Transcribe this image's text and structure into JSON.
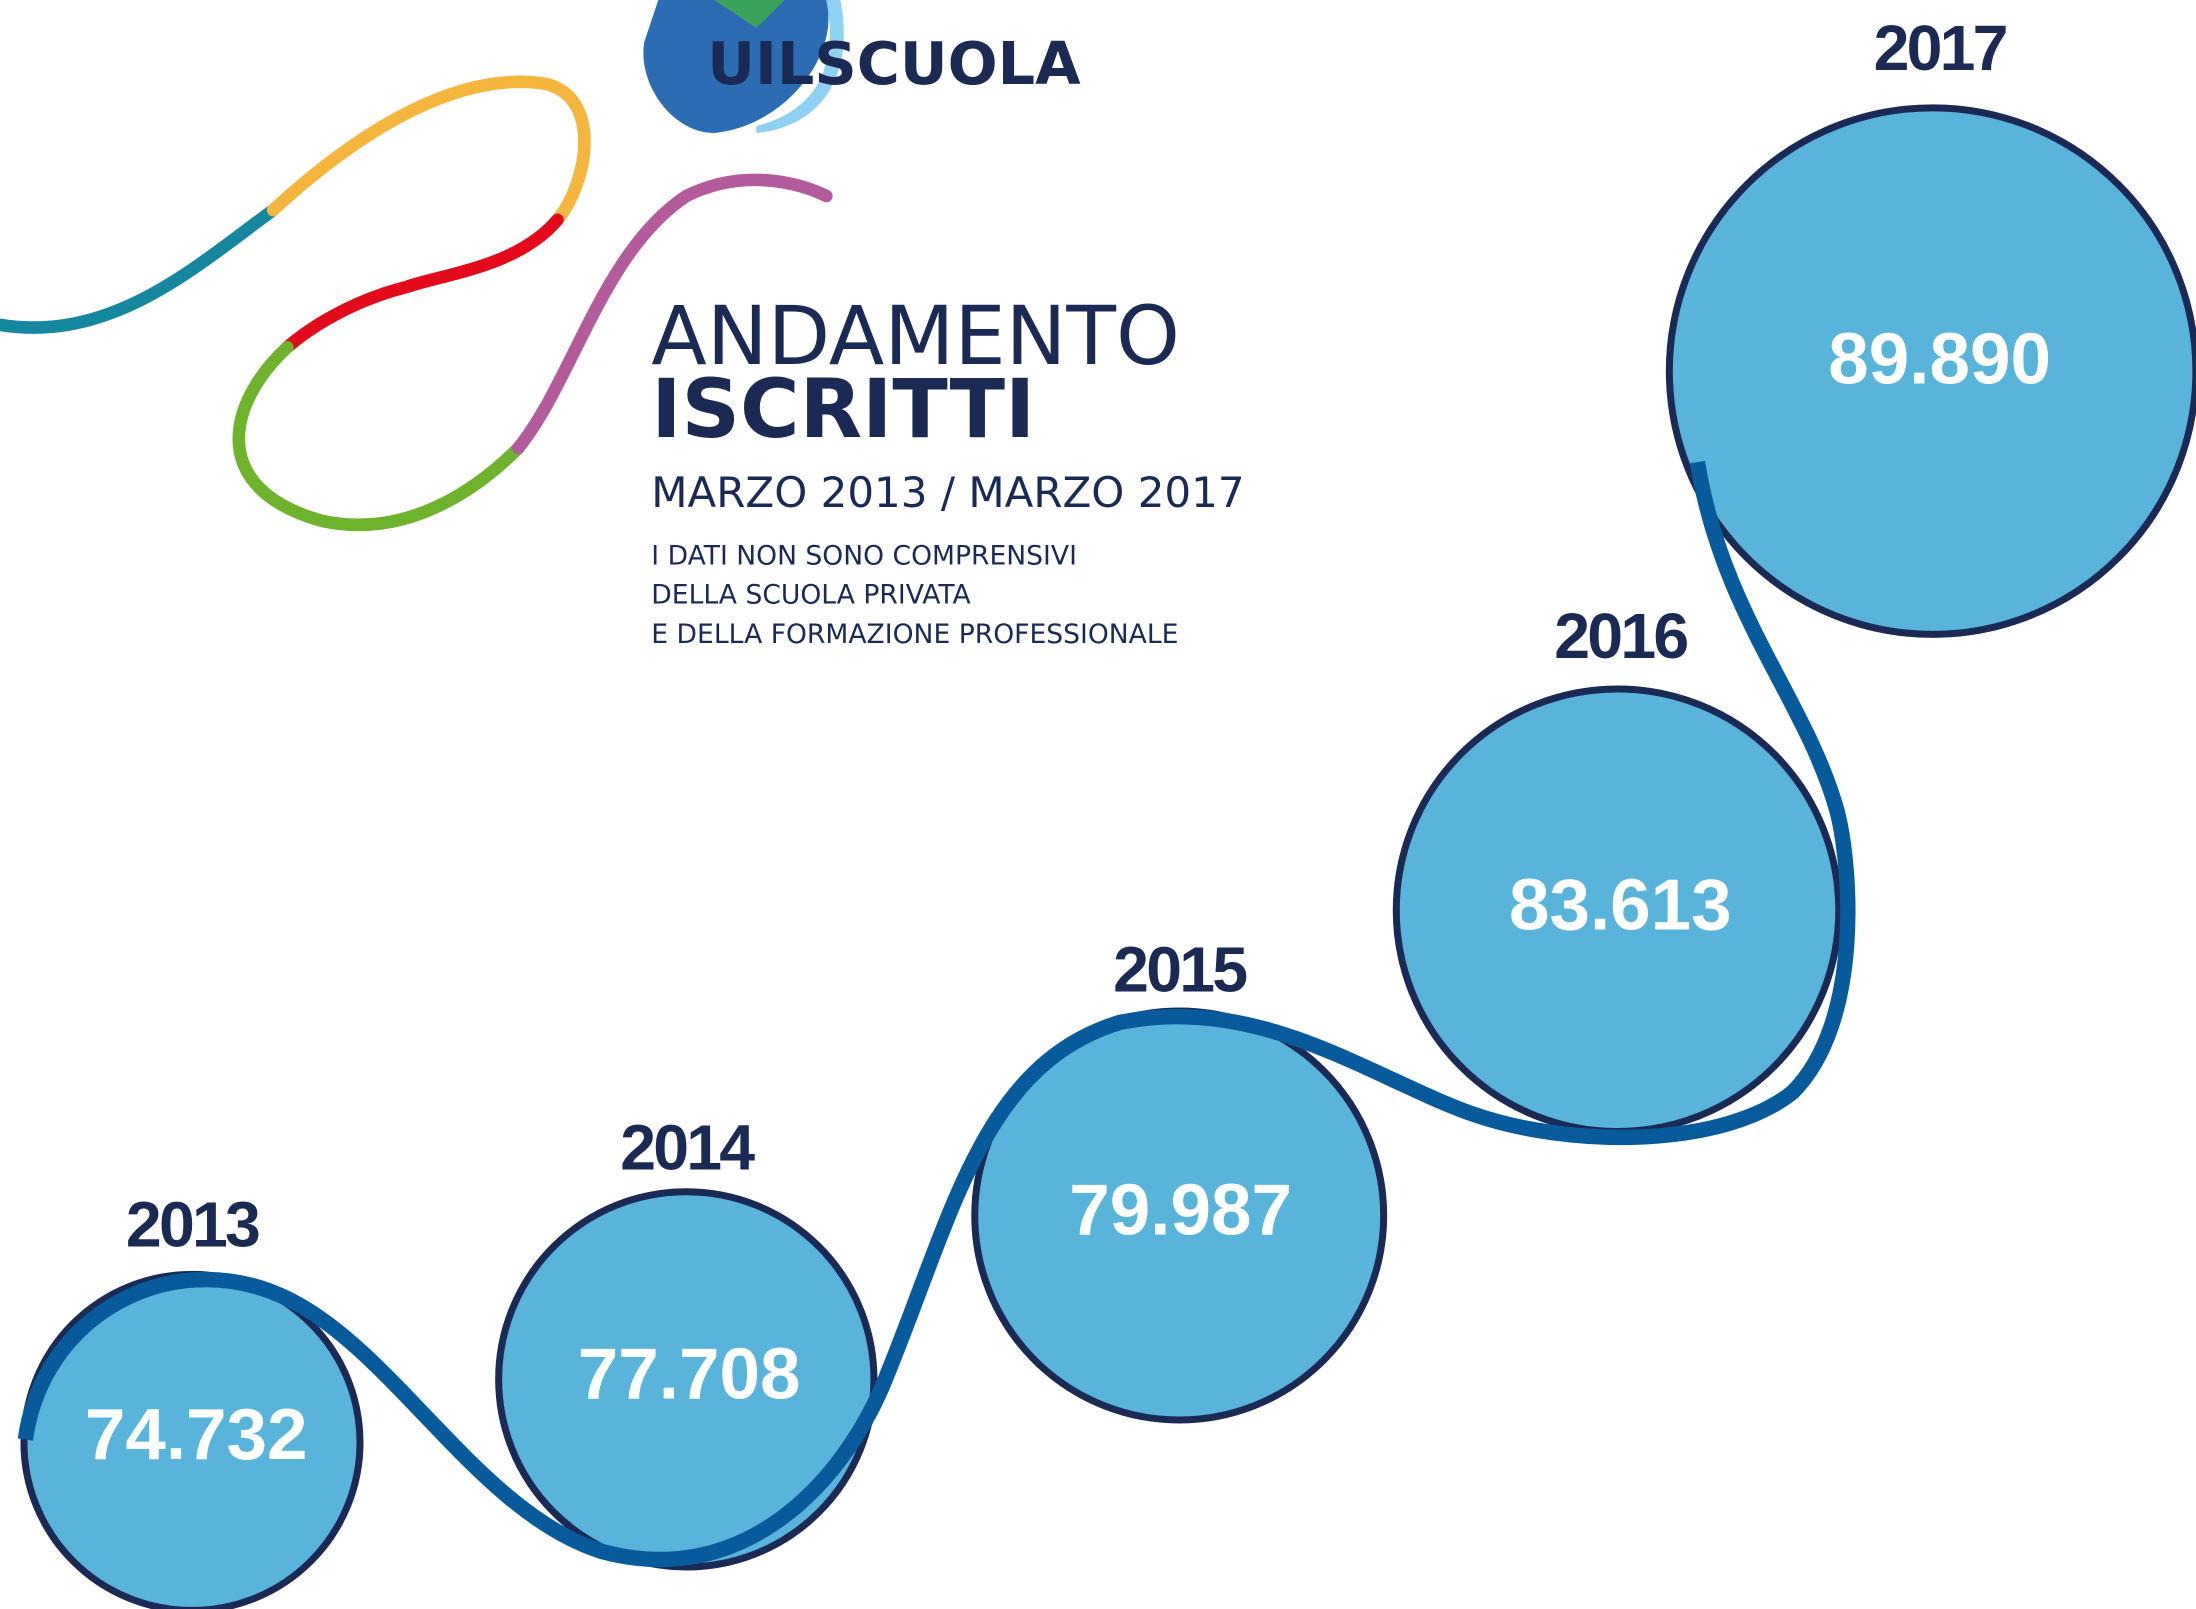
{
  "logo": "UILSCUOLA",
  "title": {
    "line1": "ANDAMENTO",
    "line2": "ISCRITTI"
  },
  "subtitle": "MARZO 2013 / MARZO 2017",
  "notes": [
    "I DATI NON SONO COMPRENSIVI",
    "DELLA SCUOLA PRIVATA",
    "E DELLA FORMAZIONE PROFESSIONALE"
  ],
  "items": [
    {
      "year": "2013",
      "value": "74.732"
    },
    {
      "year": "2014",
      "value": "77.708"
    },
    {
      "year": "2015",
      "value": "79.987"
    },
    {
      "year": "2016",
      "value": "83.613"
    },
    {
      "year": "2017",
      "value": "89.890"
    }
  ]
}
